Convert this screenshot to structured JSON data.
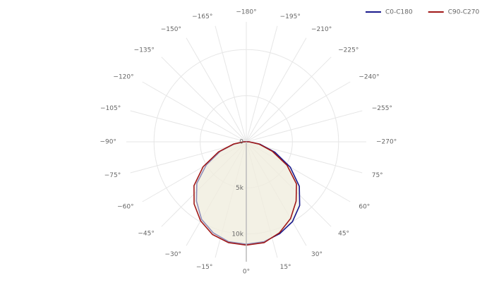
{
  "chart_data": {
    "type": "polar",
    "theta": [
      -90,
      -80,
      -70,
      -60,
      -50,
      -40,
      -30,
      -20,
      -10,
      0,
      10,
      20,
      30,
      40,
      50,
      60,
      70,
      80,
      90
    ],
    "series": [
      {
        "name": "C0-C180",
        "color": "#1a1a8c",
        "values": [
          200,
          1300,
          3000,
          5000,
          7000,
          8400,
          9700,
          10500,
          11000,
          11100,
          11000,
          10600,
          10000,
          9000,
          7500,
          5500,
          3300,
          1500,
          300
        ]
      },
      {
        "name": "C90-C270",
        "color": "#a01818",
        "values": [
          300,
          1400,
          3200,
          5400,
          7400,
          8800,
          9900,
          10700,
          11100,
          11200,
          11100,
          10500,
          9600,
          8400,
          7100,
          5100,
          3000,
          1400,
          300
        ]
      }
    ],
    "rlim": [
      0,
      13000
    ],
    "rticks": [
      0,
      {
        "value": 5000,
        "label": "5k"
      },
      {
        "value": 10000,
        "label": "10k"
      }
    ],
    "thetaticks": [
      {
        "value": 0,
        "label": "0°"
      },
      {
        "value": 15,
        "label": "15°"
      },
      {
        "value": 30,
        "label": "30°"
      },
      {
        "value": 45,
        "label": "45°"
      },
      {
        "value": 60,
        "label": "60°"
      },
      {
        "value": 75,
        "label": "75°"
      },
      {
        "value": -270,
        "label": "−270°"
      },
      {
        "value": -255,
        "label": "−255°"
      },
      {
        "value": -240,
        "label": "−240°"
      },
      {
        "value": -225,
        "label": "−225°"
      },
      {
        "value": -210,
        "label": "−210°"
      },
      {
        "value": -195,
        "label": "−195°"
      },
      {
        "value": -180,
        "label": "−180°"
      },
      {
        "value": -165,
        "label": "−165°"
      },
      {
        "value": -150,
        "label": "−150°"
      },
      {
        "value": -135,
        "label": "−135°"
      },
      {
        "value": -120,
        "label": "−120°"
      },
      {
        "value": -105,
        "label": "−105°"
      },
      {
        "value": -90,
        "label": "−90°"
      },
      {
        "value": -75,
        "label": "−75°"
      },
      {
        "value": -60,
        "label": "−60°"
      },
      {
        "value": -45,
        "label": "−45°"
      },
      {
        "value": -30,
        "label": "−30°"
      },
      {
        "value": -15,
        "label": "−15°"
      }
    ]
  }
}
